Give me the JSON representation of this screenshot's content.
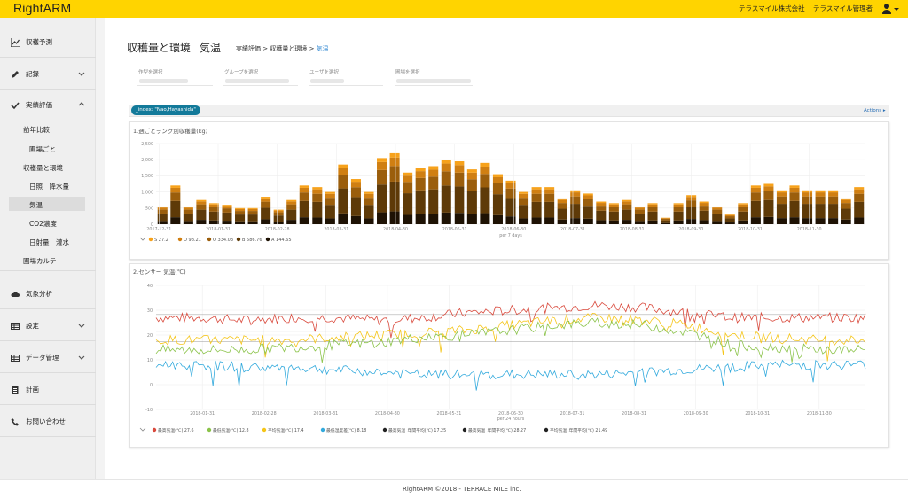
{
  "app": {
    "logo": "RightARM",
    "company": "テラスマイル株式会社",
    "user": "テラスマイル管理者"
  },
  "sidebar": {
    "items": [
      {
        "label": "収穫予測",
        "icon": "line-chart-icon"
      },
      {
        "label": "記録",
        "icon": "pencil-icon"
      },
      {
        "label": "実績評価",
        "icon": "check-icon"
      },
      {
        "label": "気象分析",
        "icon": "cloud-icon"
      },
      {
        "label": "設定",
        "icon": "table-icon"
      },
      {
        "label": "データ管理",
        "icon": "table-icon"
      },
      {
        "label": "計画",
        "icon": "clipboard-icon"
      },
      {
        "label": "お問い合わせ",
        "icon": "phone-icon"
      }
    ],
    "subitems": [
      "前年比較",
      "圃場ごと",
      "収穫量と環境",
      "日照　降水量",
      "気温",
      "CO2濃度",
      "日射量　灌水",
      "圃場カルテ"
    ]
  },
  "page": {
    "title": "収穫量と環境",
    "subtitle": "気温",
    "breadcrumb": [
      "実績評価",
      "収穫量と環境",
      "気温"
    ],
    "breadcrumb_sep": ">"
  },
  "filters": [
    {
      "label": "作型を選択"
    },
    {
      "label": "グループを選択"
    },
    {
      "label": "ユーザを選択"
    },
    {
      "label": "圃場を選択"
    }
  ],
  "tag": "_index: \"Nao,Hayashida\"",
  "actions": "Actions ▸",
  "chart1": {
    "title": "1.週ごとランク別収穫量(kg)",
    "xlabel": "per 7 days",
    "legend": [
      {
        "name": "S",
        "value": "27.2",
        "color": "#f7a21b"
      },
      {
        "name": "O",
        "value": "98.21",
        "color": "#d07f12"
      },
      {
        "name": "O",
        "value": "334.03",
        "color": "#9b5e0c"
      },
      {
        "name": "B",
        "value": "586.76",
        "color": "#5e3a08"
      },
      {
        "name": "A",
        "value": "144.65",
        "color": "#1e1204"
      }
    ]
  },
  "chart2": {
    "title": "2.センサー 気温(℃)",
    "xlabel": "per 24 hours",
    "legend": [
      {
        "name": "最高気温(℃)",
        "value": "27.6",
        "color": "#d9493c"
      },
      {
        "name": "最低気温(℃)",
        "value": "12.8",
        "color": "#8bc34a"
      },
      {
        "name": "平均気温(℃)",
        "value": "17.4",
        "color": "#f5c518"
      },
      {
        "name": "最低湿度差(℃)",
        "value": "8.18",
        "color": "#33aadd"
      },
      {
        "name": "最高気温_年間平均(℃)",
        "value": "17.25",
        "color": "#222222"
      },
      {
        "name": "最高気温_年間平均(℃)",
        "value": "28.27",
        "color": "#222222"
      },
      {
        "name": "平均気温_年間平均(℃)",
        "value": "21.49",
        "color": "#222222"
      }
    ]
  },
  "chart_data": [
    {
      "type": "bar",
      "title": "1.週ごとランク別収穫量(kg)",
      "xlabel": "per 7 days",
      "ylim": [
        0,
        2500
      ],
      "yticks": [
        "2,500",
        "2,000",
        "1,500",
        "1,000",
        "500",
        "0"
      ],
      "xticks": [
        "2017-12-31",
        "2018-01-31",
        "2018-02-28",
        "2018-03-31",
        "2018-04-30",
        "2018-05-31",
        "2018-06-30",
        "2018-07-31",
        "2018-08-31",
        "2018-09-30",
        "2018-10-31",
        "2018-11-30"
      ],
      "stacked": true,
      "series_names": [
        "A",
        "B",
        "O",
        "O",
        "S"
      ],
      "colors": [
        "#1e1204",
        "#5e3a08",
        "#9b5e0c",
        "#d07f12",
        "#f7a21b"
      ],
      "totals": [
        550,
        1200,
        550,
        750,
        650,
        600,
        500,
        500,
        850,
        450,
        750,
        1200,
        1150,
        1000,
        1850,
        1400,
        1000,
        2050,
        2200,
        1600,
        1750,
        1800,
        2000,
        1950,
        1700,
        1900,
        1550,
        1350,
        1000,
        1150,
        1150,
        800,
        1050,
        950,
        700,
        650,
        750,
        550,
        650,
        200,
        650,
        900,
        700,
        550,
        300,
        650,
        1200,
        1250,
        1050,
        1200,
        1050,
        1050,
        1050,
        800,
        1150
      ]
    },
    {
      "type": "line",
      "title": "2.センサー 気温(℃)",
      "xlabel": "per 24 hours",
      "ylim": [
        -10,
        40
      ],
      "yticks": [
        "40",
        "30",
        "20",
        "10",
        "0",
        "-10"
      ],
      "xticks": [
        "2018-01-31",
        "2018-02-28",
        "2018-03-31",
        "2018-04-30",
        "2018-05-31",
        "2018-06-30",
        "2018-07-31",
        "2018-08-31",
        "2018-09-30",
        "2018-10-31",
        "2018-11-30"
      ],
      "series": [
        {
          "name": "最高気温(℃)",
          "color": "#d9493c",
          "base": [
            27,
            27,
            26,
            27,
            27,
            26,
            27,
            29,
            30,
            31,
            32,
            31,
            29,
            27,
            27,
            27,
            27
          ]
        },
        {
          "name": "平均気温(℃)",
          "color": "#f5c518",
          "base": [
            18,
            18,
            18,
            18,
            19,
            20,
            21,
            22,
            24,
            26,
            27,
            26,
            24,
            20,
            19,
            18,
            18
          ]
        },
        {
          "name": "最低気温(℃)",
          "color": "#8bc34a",
          "base": [
            14,
            14,
            14,
            15,
            16,
            17,
            19,
            20,
            22,
            24,
            25,
            24,
            21,
            16,
            15,
            14,
            14
          ]
        },
        {
          "name": "最低湿度差(℃)",
          "color": "#33aadd",
          "base": [
            8,
            8,
            7,
            7,
            6,
            5,
            4,
            4,
            4,
            4,
            4,
            5,
            6,
            7,
            8,
            8,
            8
          ]
        }
      ],
      "reference_lines": [
        17.25,
        28.27,
        21.49
      ]
    }
  ]
}
